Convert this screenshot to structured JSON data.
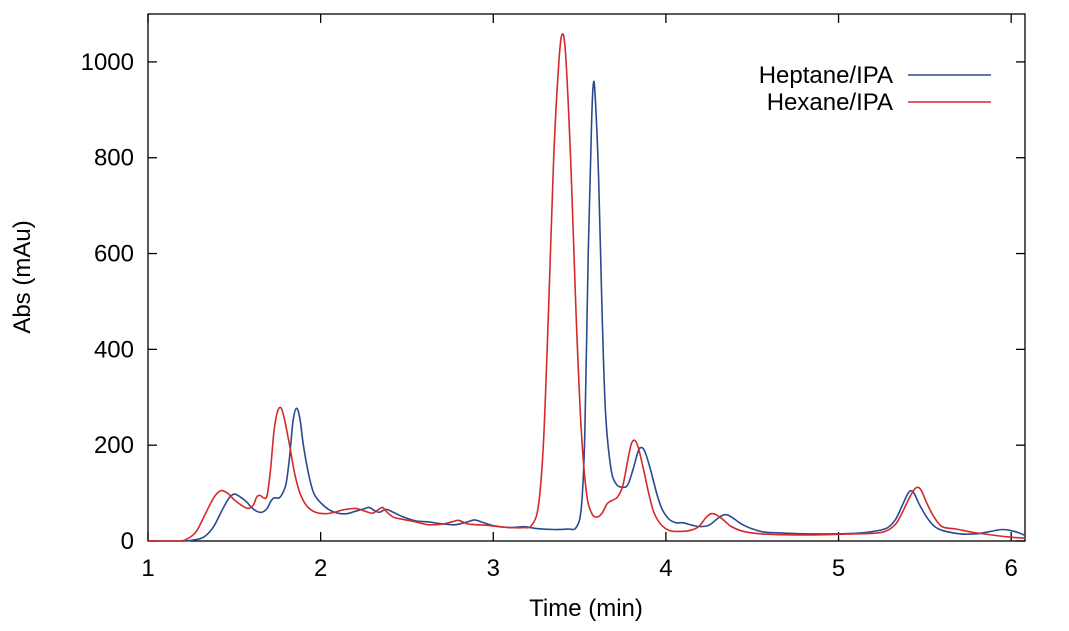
{
  "chart_data": {
    "type": "line",
    "title": "",
    "xlabel": "Time (min)",
    "ylabel": "Abs (mAu)",
    "xlim": [
      1,
      6.08
    ],
    "ylim": [
      0,
      1100
    ],
    "xticks": [
      1,
      2,
      3,
      4,
      5,
      6
    ],
    "yticks": [
      0,
      200,
      400,
      600,
      800,
      1000
    ],
    "grid": false,
    "legend_position": "top-right",
    "series": [
      {
        "name": "Heptane/IPA",
        "color": "#2a4a8f",
        "points": [
          [
            1.0,
            0
          ],
          [
            1.2,
            0
          ],
          [
            1.28,
            3
          ],
          [
            1.33,
            10
          ],
          [
            1.38,
            30
          ],
          [
            1.43,
            65
          ],
          [
            1.47,
            90
          ],
          [
            1.5,
            98
          ],
          [
            1.53,
            93
          ],
          [
            1.57,
            82
          ],
          [
            1.6,
            70
          ],
          [
            1.63,
            62
          ],
          [
            1.66,
            60
          ],
          [
            1.69,
            68
          ],
          [
            1.71,
            82
          ],
          [
            1.73,
            90
          ],
          [
            1.76,
            90
          ],
          [
            1.78,
            100
          ],
          [
            1.8,
            120
          ],
          [
            1.82,
            175
          ],
          [
            1.84,
            250
          ],
          [
            1.86,
            277
          ],
          [
            1.88,
            255
          ],
          [
            1.9,
            200
          ],
          [
            1.93,
            140
          ],
          [
            1.96,
            100
          ],
          [
            2.0,
            80
          ],
          [
            2.05,
            65
          ],
          [
            2.1,
            58
          ],
          [
            2.15,
            57
          ],
          [
            2.2,
            62
          ],
          [
            2.25,
            67
          ],
          [
            2.28,
            70
          ],
          [
            2.31,
            64
          ],
          [
            2.34,
            60
          ],
          [
            2.38,
            66
          ],
          [
            2.42,
            60
          ],
          [
            2.48,
            50
          ],
          [
            2.55,
            42
          ],
          [
            2.62,
            40
          ],
          [
            2.7,
            36
          ],
          [
            2.78,
            34
          ],
          [
            2.85,
            40
          ],
          [
            2.89,
            44
          ],
          [
            2.93,
            40
          ],
          [
            3.0,
            32
          ],
          [
            3.1,
            28
          ],
          [
            3.18,
            30
          ],
          [
            3.25,
            26
          ],
          [
            3.35,
            24
          ],
          [
            3.43,
            25
          ],
          [
            3.48,
            28
          ],
          [
            3.51,
            70
          ],
          [
            3.53,
            220
          ],
          [
            3.55,
            600
          ],
          [
            3.57,
            880
          ],
          [
            3.58,
            955
          ],
          [
            3.59,
            930
          ],
          [
            3.61,
            760
          ],
          [
            3.63,
            480
          ],
          [
            3.65,
            270
          ],
          [
            3.68,
            155
          ],
          [
            3.71,
            120
          ],
          [
            3.75,
            112
          ],
          [
            3.78,
            118
          ],
          [
            3.81,
            150
          ],
          [
            3.84,
            188
          ],
          [
            3.86,
            195
          ],
          [
            3.88,
            185
          ],
          [
            3.91,
            150
          ],
          [
            3.95,
            95
          ],
          [
            3.98,
            65
          ],
          [
            4.02,
            45
          ],
          [
            4.06,
            38
          ],
          [
            4.1,
            38
          ],
          [
            4.15,
            33
          ],
          [
            4.2,
            30
          ],
          [
            4.25,
            33
          ],
          [
            4.3,
            47
          ],
          [
            4.34,
            55
          ],
          [
            4.38,
            50
          ],
          [
            4.45,
            33
          ],
          [
            4.55,
            20
          ],
          [
            4.65,
            17
          ],
          [
            4.8,
            15
          ],
          [
            5.0,
            15
          ],
          [
            5.1,
            16
          ],
          [
            5.2,
            20
          ],
          [
            5.28,
            27
          ],
          [
            5.33,
            45
          ],
          [
            5.37,
            75
          ],
          [
            5.4,
            98
          ],
          [
            5.42,
            105
          ],
          [
            5.44,
            98
          ],
          [
            5.47,
            75
          ],
          [
            5.52,
            45
          ],
          [
            5.58,
            25
          ],
          [
            5.7,
            15
          ],
          [
            5.8,
            15
          ],
          [
            5.88,
            20
          ],
          [
            5.95,
            24
          ],
          [
            6.02,
            20
          ],
          [
            6.08,
            12
          ]
        ]
      },
      {
        "name": "Hexane/IPA",
        "color": "#d42a2a",
        "points": [
          [
            1.0,
            0
          ],
          [
            1.18,
            0
          ],
          [
            1.23,
            5
          ],
          [
            1.28,
            20
          ],
          [
            1.33,
            55
          ],
          [
            1.38,
            90
          ],
          [
            1.42,
            105
          ],
          [
            1.46,
            100
          ],
          [
            1.5,
            86
          ],
          [
            1.54,
            75
          ],
          [
            1.58,
            68
          ],
          [
            1.61,
            75
          ],
          [
            1.63,
            92
          ],
          [
            1.65,
            95
          ],
          [
            1.67,
            90
          ],
          [
            1.69,
            95
          ],
          [
            1.71,
            150
          ],
          [
            1.73,
            230
          ],
          [
            1.75,
            270
          ],
          [
            1.77,
            278
          ],
          [
            1.79,
            255
          ],
          [
            1.82,
            200
          ],
          [
            1.85,
            140
          ],
          [
            1.88,
            100
          ],
          [
            1.92,
            73
          ],
          [
            1.97,
            60
          ],
          [
            2.03,
            57
          ],
          [
            2.08,
            60
          ],
          [
            2.13,
            65
          ],
          [
            2.2,
            68
          ],
          [
            2.26,
            62
          ],
          [
            2.3,
            58
          ],
          [
            2.34,
            67
          ],
          [
            2.36,
            70
          ],
          [
            2.38,
            62
          ],
          [
            2.42,
            50
          ],
          [
            2.48,
            45
          ],
          [
            2.55,
            40
          ],
          [
            2.62,
            34
          ],
          [
            2.7,
            35
          ],
          [
            2.76,
            40
          ],
          [
            2.8,
            43
          ],
          [
            2.85,
            36
          ],
          [
            2.9,
            34
          ],
          [
            2.96,
            33
          ],
          [
            3.03,
            30
          ],
          [
            3.1,
            28
          ],
          [
            3.18,
            28
          ],
          [
            3.22,
            32
          ],
          [
            3.26,
            70
          ],
          [
            3.29,
            200
          ],
          [
            3.32,
            480
          ],
          [
            3.35,
            800
          ],
          [
            3.38,
            1000
          ],
          [
            3.4,
            1058
          ],
          [
            3.42,
            1010
          ],
          [
            3.45,
            780
          ],
          [
            3.48,
            470
          ],
          [
            3.51,
            230
          ],
          [
            3.54,
            100
          ],
          [
            3.57,
            58
          ],
          [
            3.6,
            50
          ],
          [
            3.63,
            58
          ],
          [
            3.66,
            78
          ],
          [
            3.69,
            85
          ],
          [
            3.72,
            92
          ],
          [
            3.75,
            115
          ],
          [
            3.78,
            170
          ],
          [
            3.8,
            203
          ],
          [
            3.82,
            210
          ],
          [
            3.84,
            195
          ],
          [
            3.87,
            150
          ],
          [
            3.9,
            100
          ],
          [
            3.93,
            60
          ],
          [
            3.97,
            35
          ],
          [
            4.02,
            22
          ],
          [
            4.08,
            20
          ],
          [
            4.14,
            22
          ],
          [
            4.19,
            30
          ],
          [
            4.23,
            48
          ],
          [
            4.26,
            57
          ],
          [
            4.29,
            55
          ],
          [
            4.33,
            45
          ],
          [
            4.38,
            30
          ],
          [
            4.45,
            20
          ],
          [
            4.55,
            15
          ],
          [
            4.7,
            13
          ],
          [
            4.9,
            13
          ],
          [
            5.1,
            15
          ],
          [
            5.2,
            16
          ],
          [
            5.27,
            20
          ],
          [
            5.33,
            35
          ],
          [
            5.37,
            60
          ],
          [
            5.41,
            90
          ],
          [
            5.44,
            108
          ],
          [
            5.46,
            112
          ],
          [
            5.48,
            105
          ],
          [
            5.51,
            80
          ],
          [
            5.55,
            52
          ],
          [
            5.6,
            30
          ],
          [
            5.68,
            25
          ],
          [
            5.78,
            18
          ],
          [
            5.9,
            12
          ],
          [
            6.0,
            8
          ],
          [
            6.08,
            6
          ]
        ]
      }
    ]
  }
}
